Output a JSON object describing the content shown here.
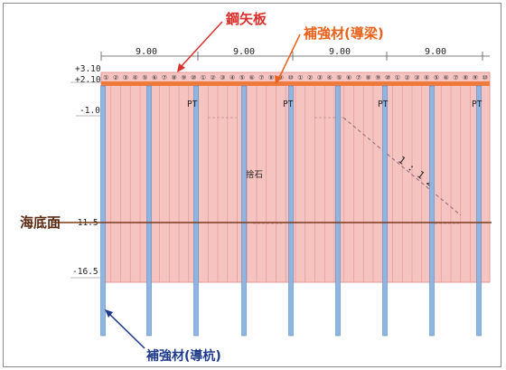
{
  "labels": {
    "steel_sheet_pile": "鋼矢板",
    "reinforcement_beam": "補強材(導梁)",
    "reinforcement_pile": "補強材(導杭)",
    "seabed": "海底面",
    "fill_stone": "捨石",
    "slope": "1 : 1 2"
  },
  "dimensions": [
    "9.00",
    "9.00",
    "9.00",
    "9.00"
  ],
  "elevations": {
    "top": "+3.10",
    "beam": "+2.10",
    "level1": "-1.0",
    "seabed": "-11.5",
    "bottom": "-16.5"
  },
  "pile_marks": [
    "PT",
    "PT",
    "PT",
    "PT"
  ],
  "pile_numbers": [
    "①",
    "②",
    "③",
    "④",
    "⑤",
    "⑥",
    "⑦",
    "⑧",
    "⑨",
    "⑩",
    "①",
    "②",
    "③",
    "④",
    "⑤",
    "⑥",
    "⑦",
    "⑧",
    "⑨",
    "⑩",
    "①",
    "②",
    "③",
    "④",
    "⑤",
    "⑥",
    "⑦",
    "⑧",
    "⑨",
    "⑩",
    "①",
    "②",
    "③",
    "④",
    "⑤",
    "⑥",
    "⑦",
    "⑧",
    "⑨",
    "⑩"
  ],
  "colors": {
    "sheet_pile_fill": "#f6c4c0",
    "beam": "#ee7a3c",
    "guide_pile": "#8fb6e3",
    "seabed_line": "#7a3c1c",
    "red_label": "#d9302c",
    "orange_label": "#e8621c",
    "blue_label": "#1d3a8a"
  }
}
